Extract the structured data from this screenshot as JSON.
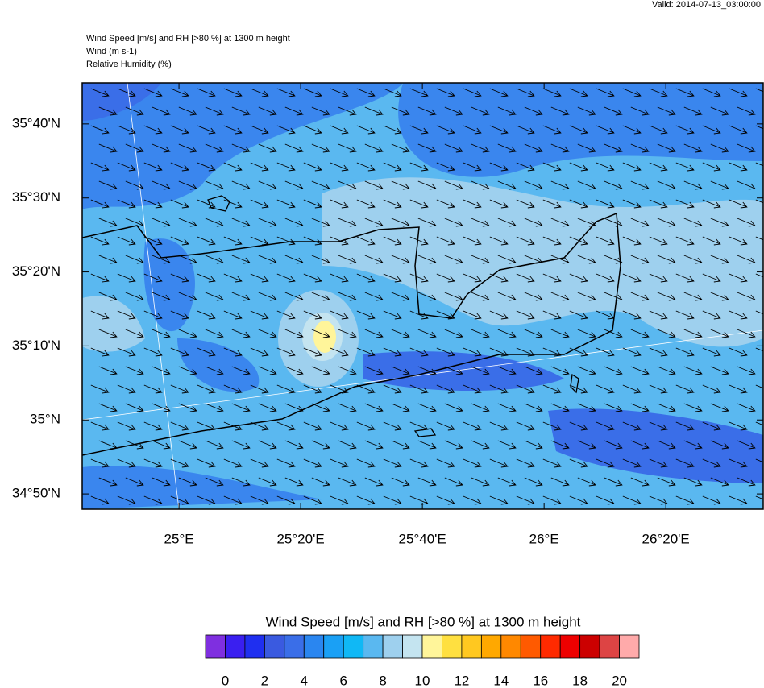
{
  "header": {
    "valid": "Valid: 2014-07-13_03:00:00",
    "title_lines": [
      "Wind Speed [m/s] and RH [>80 %] at 1300 m height",
      "Wind   (m s-1)",
      "Relative Humidity   (%)"
    ]
  },
  "map": {
    "xlim": [
      24.735,
      26.6
    ],
    "ylim": [
      34.799,
      35.759
    ],
    "xticks": [
      {
        "value": 25,
        "label": "25°E"
      },
      {
        "value": 25.3333,
        "label": "25°20'E"
      },
      {
        "value": 25.6667,
        "label": "25°40'E"
      },
      {
        "value": 26,
        "label": "26°E"
      },
      {
        "value": 26.3333,
        "label": "26°20'E"
      }
    ],
    "yticks": [
      {
        "value": 35.6667,
        "label": "35°40'N"
      },
      {
        "value": 35.5,
        "label": "35°30'N"
      },
      {
        "value": 35.3333,
        "label": "35°20'N"
      },
      {
        "value": 35.1667,
        "label": "35°10'N"
      },
      {
        "value": 35,
        "label": "35°N"
      },
      {
        "value": 34.8333,
        "label": "34°50'N"
      }
    ]
  },
  "colorbar": {
    "title": "Wind Speed [m/s] and RH [>80 %] at 1300 m height",
    "range": [
      -1,
      21
    ],
    "ticks": [
      0,
      2,
      4,
      6,
      8,
      10,
      12,
      14,
      16,
      18,
      20
    ],
    "colors": [
      "#7f2fe0",
      "#3a1ff0",
      "#1f2ff0",
      "#3a5ae0",
      "#3a6ee8",
      "#2a86f0",
      "#1aa0f5",
      "#10b8f5",
      "#5ab8f0",
      "#9ed0ee",
      "#c4e4f0",
      "#fff59a",
      "#ffe040",
      "#ffc820",
      "#ffa800",
      "#ff8800",
      "#ff5a00",
      "#ff2a00",
      "#ee0000",
      "#cc0000",
      "#dd4444",
      "#ffaaaa"
    ]
  }
}
